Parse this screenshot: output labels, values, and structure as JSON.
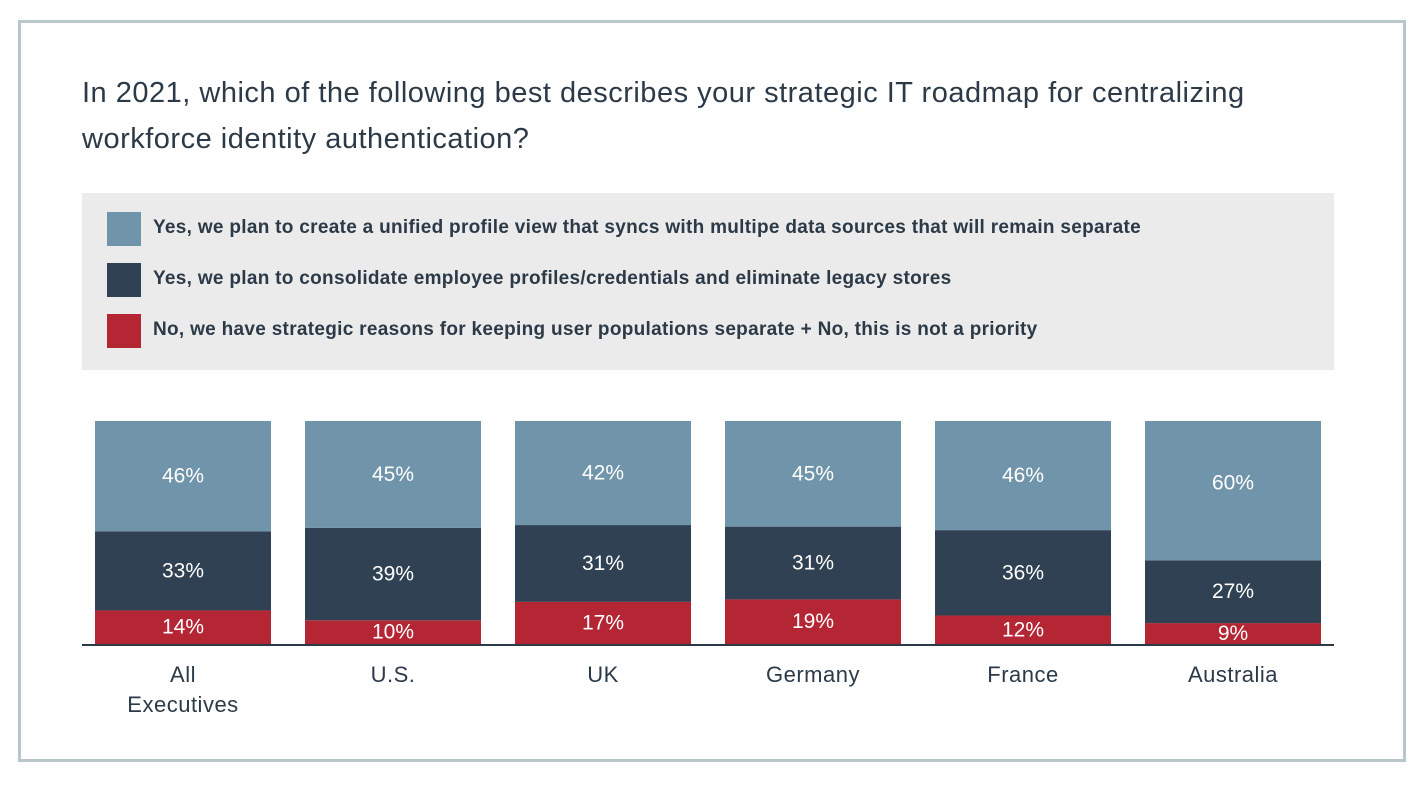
{
  "title": "In 2021, which of the following best describes your strategic IT roadmap for centralizing workforce identity authentication?",
  "colors": {
    "unified": "#7094a9",
    "consolidate": "#2f4153",
    "no": "#b52634",
    "axis": "#2c3a48"
  },
  "chart_data": {
    "type": "bar",
    "stacked": true,
    "categories": [
      [
        "All",
        "Executives"
      ],
      [
        "U.S."
      ],
      [
        "UK"
      ],
      [
        "Germany"
      ],
      [
        "France"
      ],
      [
        "Australia"
      ]
    ],
    "series": [
      {
        "name": "Yes, we plan to create a unified profile view that syncs with multipe data sources that will remain separate",
        "color": "#7094a9",
        "values": [
          46,
          45,
          42,
          45,
          46,
          60
        ],
        "labels": [
          "46%",
          "45%",
          "42%",
          "45%",
          "46%",
          "60%"
        ]
      },
      {
        "name": "Yes, we plan to consolidate employee profiles/credentials and eliminate legacy stores",
        "color": "#2f4153",
        "values": [
          33,
          39,
          31,
          31,
          36,
          27
        ],
        "labels": [
          "33%",
          "39%",
          "31%",
          "31%",
          "36%",
          "27%"
        ]
      },
      {
        "name": "No, we have strategic reasons for keeping user populations separate + No, this is not a priority",
        "color": "#b52634",
        "values": [
          14,
          10,
          17,
          19,
          12,
          9
        ],
        "labels": [
          "14%",
          "10%",
          "17%",
          "19%",
          "12%",
          "9%"
        ]
      }
    ],
    "legend_position": "top",
    "grid": false
  }
}
